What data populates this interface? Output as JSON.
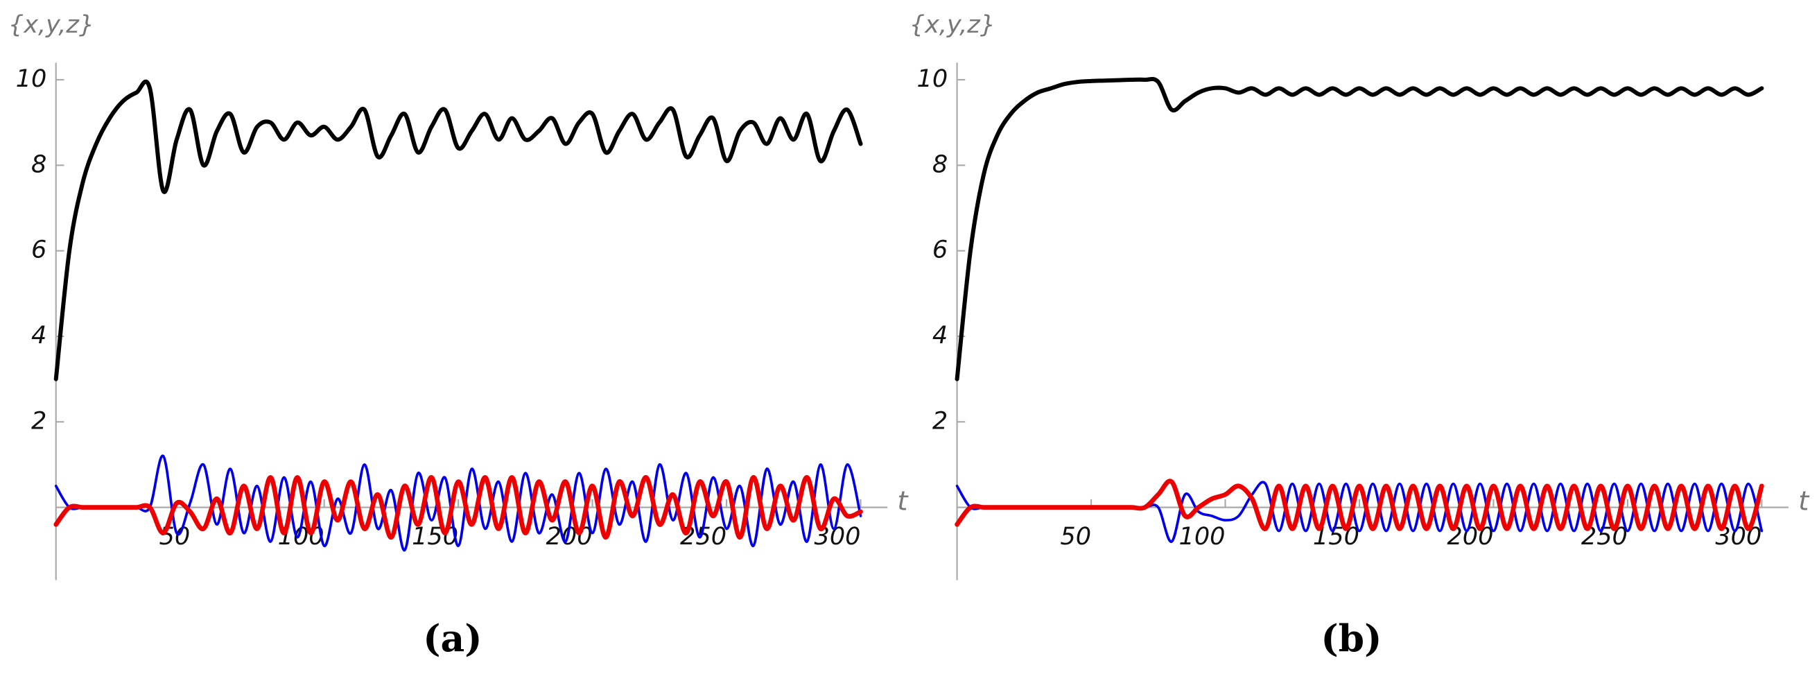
{
  "chart_data": [
    {
      "type": "line",
      "y_label": "{x,y,z}",
      "x_label": "t",
      "caption": "(a)",
      "x": [
        0,
        5,
        10,
        15,
        20,
        25,
        30,
        35,
        40,
        45,
        50,
        55,
        60,
        65,
        70,
        75,
        80,
        85,
        90,
        95,
        100,
        105,
        110,
        115,
        120,
        125,
        130,
        135,
        140,
        145,
        150,
        155,
        160,
        165,
        170,
        175,
        180,
        185,
        190,
        195,
        200,
        205,
        210,
        215,
        220,
        225,
        230,
        235,
        240,
        245,
        250,
        255,
        260,
        265,
        270,
        275,
        280,
        285,
        290,
        295,
        300
      ],
      "xlim": [
        0,
        310
      ],
      "xticks": [
        50,
        100,
        150,
        200,
        250,
        300
      ],
      "ylim": [
        -1.7,
        10.4
      ],
      "yticks": [
        2,
        4,
        6,
        8,
        10
      ],
      "grid": false,
      "series": [
        {
          "color": "#0000ee",
          "values": [
            0.5,
            0,
            0,
            0,
            0,
            0,
            0,
            0,
            1.2,
            -0.6,
            0.1,
            1,
            -0.4,
            0.9,
            -0.6,
            0.5,
            -0.8,
            0.7,
            -0.7,
            0.6,
            -0.9,
            0.2,
            -0.6,
            1,
            -0.5,
            0.4,
            -1,
            0.8,
            -0.3,
            0.7,
            -0.9,
            0.9,
            -0.5,
            0.6,
            -0.8,
            0.8,
            -0.6,
            0.3,
            -0.8,
            0.8,
            -0.6,
            0.9,
            -0.4,
            0.6,
            -0.8,
            1,
            -0.3,
            0.8,
            -0.7,
            0.7,
            -0.5,
            0.5,
            -0.9,
            0.9,
            -0.4,
            0.6,
            -0.8,
            1,
            -0.5,
            1,
            -0.2
          ]
        },
        {
          "color": "#ee0000",
          "values": [
            -0.4,
            0,
            0,
            0,
            0,
            0,
            0,
            0,
            -0.6,
            0.1,
            -0.1,
            -0.5,
            0.2,
            -0.6,
            0.5,
            -0.5,
            0.7,
            -0.6,
            0.7,
            -0.6,
            0.6,
            -0.3,
            0.6,
            -0.5,
            0.3,
            -0.7,
            0.5,
            -0.4,
            0.7,
            -0.6,
            0.6,
            -0.4,
            0.7,
            -0.5,
            0.7,
            -0.6,
            0.6,
            -0.3,
            0.6,
            -0.6,
            0.5,
            -0.7,
            0.6,
            -0.2,
            0.7,
            -0.4,
            0.3,
            -0.6,
            0.6,
            -0.2,
            0.6,
            -0.7,
            0.7,
            -0.5,
            0.5,
            -0.3,
            0.7,
            -0.5,
            0.2,
            -0.2,
            -0.1
          ]
        },
        {
          "color": "#000000",
          "values": [
            3,
            6,
            7.6,
            8.5,
            9.1,
            9.5,
            9.7,
            9.8,
            7.4,
            8.6,
            9.3,
            8,
            8.8,
            9.2,
            8.3,
            8.9,
            9,
            8.6,
            9,
            8.7,
            8.9,
            8.6,
            8.9,
            9.3,
            8.2,
            8.7,
            9.2,
            8.3,
            8.9,
            9.3,
            8.4,
            8.8,
            9.2,
            8.6,
            9.1,
            8.6,
            8.8,
            9.1,
            8.5,
            9,
            9.2,
            8.3,
            8.8,
            9.2,
            8.6,
            9,
            9.3,
            8.2,
            8.7,
            9.1,
            8.1,
            8.8,
            9,
            8.5,
            9.1,
            8.6,
            9.2,
            8.1,
            8.8,
            9.3,
            8.5
          ]
        }
      ]
    },
    {
      "type": "line",
      "y_label": "{x,y,z}",
      "x_label": "t",
      "caption": "(b)",
      "x": [
        0,
        5,
        10,
        15,
        20,
        25,
        30,
        35,
        40,
        45,
        50,
        55,
        60,
        65,
        70,
        75,
        80,
        85,
        90,
        95,
        100,
        105,
        110,
        115,
        120,
        125,
        130,
        135,
        140,
        145,
        150,
        155,
        160,
        165,
        170,
        175,
        180,
        185,
        190,
        195,
        200,
        205,
        210,
        215,
        220,
        225,
        230,
        235,
        240,
        245,
        250,
        255,
        260,
        265,
        270,
        275,
        280,
        285,
        290,
        295,
        300
      ],
      "xlim": [
        0,
        310
      ],
      "xticks": [
        50,
        100,
        150,
        200,
        250,
        300
      ],
      "ylim": [
        -1.7,
        10.4
      ],
      "yticks": [
        2,
        4,
        6,
        8,
        10
      ],
      "grid": false,
      "series": [
        {
          "color": "#0000ee",
          "values": [
            0.5,
            0,
            0,
            0,
            0,
            0,
            0,
            0,
            0,
            0,
            0,
            0,
            0,
            0,
            0,
            0,
            -0.8,
            0.3,
            -0.1,
            -0.2,
            -0.3,
            -0.2,
            0.3,
            0.55,
            -0.55,
            0.55,
            -0.55,
            0.55,
            -0.55,
            0.55,
            -0.55,
            0.55,
            -0.55,
            0.55,
            -0.55,
            0.55,
            -0.55,
            0.55,
            -0.55,
            0.55,
            -0.55,
            0.55,
            -0.55,
            0.55,
            -0.55,
            0.55,
            -0.55,
            0.55,
            -0.55,
            0.55,
            -0.55,
            0.55,
            -0.55,
            0.55,
            -0.55,
            0.55,
            -0.55,
            0.55,
            -0.55,
            0.55,
            -0.55
          ]
        },
        {
          "color": "#ee0000",
          "values": [
            -0.4,
            0,
            0,
            0,
            0,
            0,
            0,
            0,
            0,
            0,
            0,
            0,
            0,
            0,
            0,
            0.3,
            0.6,
            -0.2,
            0,
            0.2,
            0.3,
            0.5,
            0.2,
            -0.5,
            0.5,
            -0.5,
            0.5,
            -0.5,
            0.5,
            -0.5,
            0.5,
            -0.5,
            0.5,
            -0.5,
            0.5,
            -0.5,
            0.5,
            -0.5,
            0.5,
            -0.5,
            0.5,
            -0.5,
            0.5,
            -0.5,
            0.5,
            -0.5,
            0.5,
            -0.5,
            0.5,
            -0.5,
            0.5,
            -0.5,
            0.5,
            -0.5,
            0.5,
            -0.5,
            0.5,
            -0.5,
            0.5,
            -0.5,
            0.5
          ]
        },
        {
          "color": "#000000",
          "values": [
            3,
            6,
            7.8,
            8.7,
            9.2,
            9.5,
            9.7,
            9.8,
            9.9,
            9.95,
            9.97,
            9.98,
            9.99,
            10,
            10,
            9.95,
            9.3,
            9.5,
            9.7,
            9.8,
            9.8,
            9.7,
            9.8,
            9.65,
            9.8,
            9.65,
            9.8,
            9.65,
            9.8,
            9.65,
            9.8,
            9.65,
            9.8,
            9.65,
            9.8,
            9.65,
            9.8,
            9.65,
            9.8,
            9.65,
            9.8,
            9.65,
            9.8,
            9.65,
            9.8,
            9.65,
            9.8,
            9.65,
            9.8,
            9.65,
            9.8,
            9.65,
            9.8,
            9.65,
            9.8,
            9.65,
            9.8,
            9.65,
            9.8,
            9.65,
            9.8
          ]
        }
      ]
    }
  ]
}
